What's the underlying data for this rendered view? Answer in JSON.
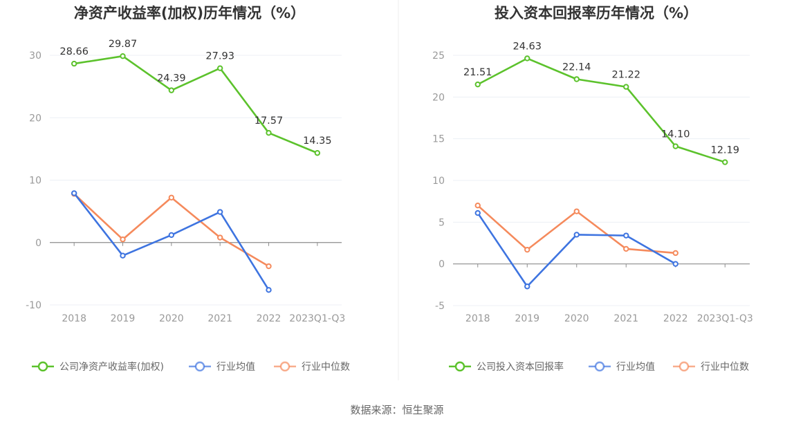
{
  "chart_data": [
    {
      "type": "line",
      "title": "净资产收益率(加权)历年情况（%）",
      "categories": [
        "2018",
        "2019",
        "2020",
        "2021",
        "2022",
        "2023Q1-Q3"
      ],
      "ylim": [
        -10,
        30
      ],
      "yticks": [
        -10,
        0,
        10,
        20,
        30
      ],
      "xlabel": "",
      "ylabel": "",
      "legend_position": "bottom",
      "series": [
        {
          "name": "公司净资产收益率(加权)",
          "color": "#5cc22c",
          "values": [
            28.66,
            29.87,
            24.39,
            27.93,
            17.57,
            14.35
          ],
          "labels": [
            "28.66",
            "29.87",
            "24.39",
            "27.93",
            "17.57",
            "14.35"
          ]
        },
        {
          "name": "行业均值",
          "color": "#3e74e0",
          "values": [
            7.9,
            -2.1,
            1.2,
            4.9,
            -7.6,
            null
          ]
        },
        {
          "name": "行业中位数",
          "color": "#f58a5c",
          "values": [
            7.8,
            0.5,
            7.2,
            0.8,
            -3.8,
            null
          ]
        }
      ]
    },
    {
      "type": "line",
      "title": "投入资本回报率历年情况（%）",
      "categories": [
        "2018",
        "2019",
        "2020",
        "2021",
        "2022",
        "2023Q1-Q3"
      ],
      "ylim": [
        -5,
        25
      ],
      "yticks": [
        -5,
        0,
        5,
        10,
        15,
        20,
        25
      ],
      "xlabel": "",
      "ylabel": "",
      "legend_position": "bottom",
      "series": [
        {
          "name": "公司投入资本回报率",
          "color": "#5cc22c",
          "values": [
            21.51,
            24.63,
            22.14,
            21.22,
            14.1,
            12.19
          ],
          "labels": [
            "21.51",
            "24.63",
            "22.14",
            "21.22",
            "14.10",
            "12.19"
          ]
        },
        {
          "name": "行业均值",
          "color": "#3e74e0",
          "values": [
            6.1,
            -2.7,
            3.5,
            3.4,
            0.0,
            null
          ]
        },
        {
          "name": "行业中位数",
          "color": "#f58a5c",
          "values": [
            7.0,
            1.7,
            6.3,
            1.8,
            1.3,
            null
          ]
        }
      ]
    }
  ],
  "footer": {
    "source": "数据来源：恒生聚源"
  }
}
